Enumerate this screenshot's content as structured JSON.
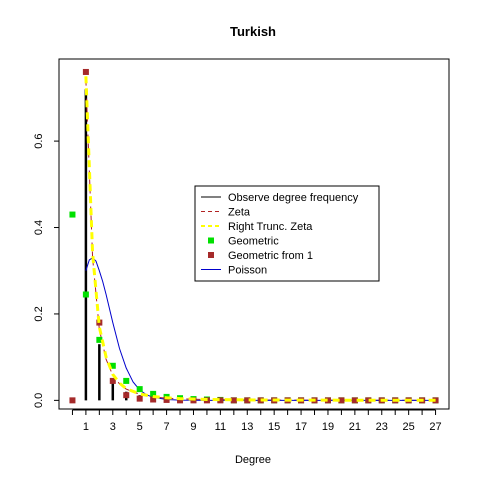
{
  "chart_data": {
    "type": "line",
    "title": "Turkish",
    "xlabel": "Degree",
    "ylabel": "",
    "xlim": [
      -1,
      28
    ],
    "ylim": [
      -0.02,
      0.79
    ],
    "xticks": [
      1,
      3,
      5,
      7,
      9,
      11,
      13,
      15,
      17,
      19,
      21,
      23,
      25,
      27
    ],
    "yticks": [
      0.0,
      0.2,
      0.4,
      0.6
    ],
    "ytick_labels": [
      "0.0",
      "0.2",
      "0.4",
      "0.6"
    ],
    "grid": false,
    "legend_position": "center-right",
    "legend": [
      {
        "label": "Observe degree frequency",
        "kind": "line",
        "color": "#000000",
        "dash": "solid"
      },
      {
        "label": "Zeta",
        "kind": "line",
        "color": "#b22222",
        "dash": "dashed"
      },
      {
        "label": "Right Trunc. Zeta",
        "kind": "line",
        "color": "#ffff00",
        "dash": "dashed"
      },
      {
        "label": "Geometric",
        "kind": "point",
        "color": "#00e000"
      },
      {
        "label": "Geometric from 1",
        "kind": "point",
        "color": "#a52a2a"
      },
      {
        "label": "Poisson",
        "kind": "line",
        "color": "#0000cc",
        "dash": "solid"
      }
    ],
    "series": [
      {
        "name": "Observe degree frequency",
        "style": "bars",
        "color": "#000000",
        "x": [
          1,
          2,
          3,
          4,
          5,
          6,
          7,
          8,
          9,
          10
        ],
        "y": [
          0.72,
          0.13,
          0.05,
          0.02,
          0.012,
          0.008,
          0.005,
          0.003,
          0.002,
          0.001
        ]
      },
      {
        "name": "Zeta",
        "style": "dashed",
        "color": "#b22222",
        "x": [
          1,
          1.5,
          2,
          2.5,
          3,
          3.5,
          4,
          5,
          6,
          7,
          8,
          10,
          13,
          16,
          20,
          24,
          27
        ],
        "y": [
          0.74,
          0.33,
          0.165,
          0.095,
          0.058,
          0.038,
          0.026,
          0.014,
          0.008,
          0.005,
          0.0035,
          0.002,
          0.001,
          0.0007,
          0.0004,
          0.0003,
          0.0002
        ]
      },
      {
        "name": "Right Trunc. Zeta",
        "style": "thick-dashed",
        "color": "#ffff00",
        "x": [
          1,
          1.5,
          2,
          2.5,
          3,
          3.5,
          4,
          5,
          6,
          7,
          8,
          10,
          13,
          16,
          20,
          24,
          27
        ],
        "y": [
          0.75,
          0.34,
          0.17,
          0.1,
          0.06,
          0.04,
          0.027,
          0.015,
          0.009,
          0.006,
          0.004,
          0.002,
          0.001,
          0.0007,
          0.0004,
          0.0003,
          0.0002
        ]
      },
      {
        "name": "Geometric",
        "style": "points",
        "color": "#00e000",
        "x": [
          0,
          1,
          2,
          3,
          4,
          5,
          6,
          7,
          8,
          9,
          10,
          11,
          12,
          13,
          14,
          15,
          16,
          17,
          18,
          19,
          20,
          21,
          22,
          23,
          24,
          25,
          26,
          27
        ],
        "y": [
          0.43,
          0.245,
          0.14,
          0.08,
          0.045,
          0.026,
          0.015,
          0.008,
          0.005,
          0.003,
          0.002,
          0.001,
          0,
          0,
          0,
          0,
          0,
          0,
          0,
          0,
          0,
          0,
          0,
          0,
          0,
          0,
          0,
          0
        ]
      },
      {
        "name": "Geometric from 1",
        "style": "points",
        "color": "#a52a2a",
        "x": [
          0,
          1,
          2,
          3,
          4,
          5,
          6,
          7,
          8,
          9,
          10,
          11,
          12,
          13,
          14,
          15,
          16,
          17,
          18,
          19,
          20,
          21,
          22,
          23,
          24,
          25,
          26,
          27
        ],
        "y": [
          0,
          0.76,
          0.18,
          0.045,
          0.012,
          0.004,
          0.002,
          0.001,
          0,
          0,
          0,
          0,
          0,
          0,
          0,
          0,
          0,
          0,
          0,
          0,
          0,
          0,
          0,
          0,
          0,
          0,
          0,
          0
        ]
      },
      {
        "name": "Poisson",
        "style": "solid",
        "color": "#0000cc",
        "x": [
          1,
          1.25,
          1.5,
          1.75,
          2,
          2.25,
          2.5,
          3,
          3.5,
          4,
          4.5,
          5,
          5.5,
          6,
          7,
          8,
          9,
          10,
          12,
          15,
          20,
          27
        ],
        "y": [
          0.3,
          0.325,
          0.33,
          0.322,
          0.3,
          0.275,
          0.245,
          0.18,
          0.12,
          0.075,
          0.043,
          0.024,
          0.013,
          0.007,
          0.002,
          0.0005,
          0.0001,
          0,
          0,
          0,
          0,
          0
        ]
      }
    ]
  }
}
